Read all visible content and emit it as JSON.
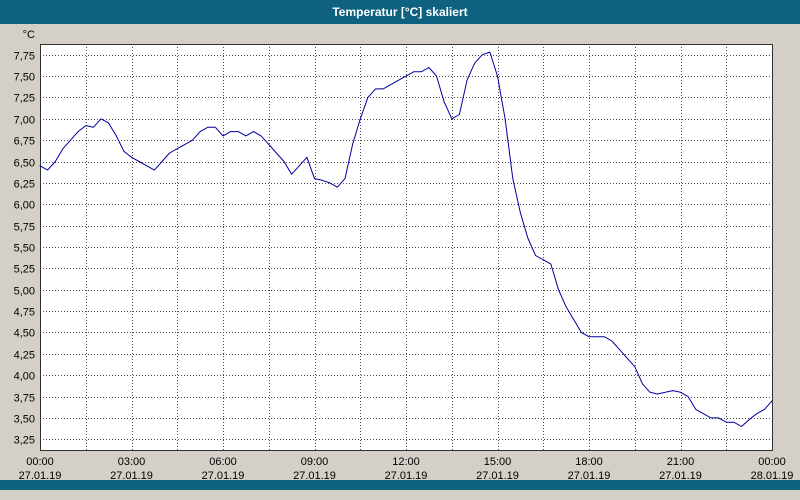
{
  "window": {
    "title": "Temperatur [°C] skaliert"
  },
  "colors": {
    "titlebar": "#0e6280",
    "background": "#d4d0c8",
    "plot_background": "#ffffff",
    "grid": "#4d4d4d",
    "plot_border": "#303030",
    "series_line": "#0000a0",
    "title_text": "#ffffff",
    "tick_text": "#000000"
  },
  "chart_data": {
    "type": "line",
    "title": "Temperatur [°C] skaliert",
    "ylabel": "°C",
    "xlabel": "",
    "grid": true,
    "legend": "none",
    "decimal_comma": true,
    "ylim": [
      3.125,
      7.875
    ],
    "y_ticks": [
      7.75,
      7.5,
      7.25,
      7.0,
      6.75,
      6.5,
      6.25,
      6.0,
      5.75,
      5.5,
      5.25,
      5.0,
      4.75,
      4.5,
      4.25,
      4.0,
      3.75,
      3.5,
      3.25
    ],
    "x_range_hours": [
      0,
      24
    ],
    "minor_x_step_hours": 1.5,
    "x_ticks": [
      {
        "hour": 0,
        "time": "00:00",
        "date": "27.01.19"
      },
      {
        "hour": 3,
        "time": "03:00",
        "date": "27.01.19"
      },
      {
        "hour": 6,
        "time": "06:00",
        "date": "27.01.19"
      },
      {
        "hour": 9,
        "time": "09:00",
        "date": "27.01.19"
      },
      {
        "hour": 12,
        "time": "12:00",
        "date": "27.01.19"
      },
      {
        "hour": 15,
        "time": "15:00",
        "date": "27.01.19"
      },
      {
        "hour": 18,
        "time": "18:00",
        "date": "27.01.19"
      },
      {
        "hour": 21,
        "time": "21:00",
        "date": "27.01.19"
      },
      {
        "hour": 24,
        "time": "00:00",
        "date": "28.01.19"
      }
    ],
    "series": [
      {
        "name": "Temperatur",
        "sample_interval_hours": 0.25,
        "start_hour": 0,
        "values": [
          6.45,
          6.4,
          6.5,
          6.65,
          6.75,
          6.85,
          6.92,
          6.9,
          7.0,
          6.95,
          6.8,
          6.62,
          6.55,
          6.5,
          6.45,
          6.4,
          6.5,
          6.6,
          6.65,
          6.7,
          6.75,
          6.85,
          6.9,
          6.9,
          6.8,
          6.85,
          6.85,
          6.8,
          6.85,
          6.8,
          6.7,
          6.6,
          6.5,
          6.35,
          6.45,
          6.55,
          6.3,
          6.28,
          6.25,
          6.2,
          6.3,
          6.7,
          7.0,
          7.25,
          7.35,
          7.35,
          7.4,
          7.45,
          7.5,
          7.55,
          7.55,
          7.6,
          7.5,
          7.2,
          7.0,
          7.05,
          7.45,
          7.65,
          7.75,
          7.78,
          7.5,
          7.0,
          6.3,
          5.9,
          5.6,
          5.4,
          5.35,
          5.3,
          5.0,
          4.8,
          4.65,
          4.5,
          4.45,
          4.45,
          4.45,
          4.4,
          4.3,
          4.2,
          4.1,
          3.9,
          3.8,
          3.78,
          3.8,
          3.82,
          3.8,
          3.75,
          3.6,
          3.55,
          3.5,
          3.5,
          3.45,
          3.45,
          3.4,
          3.48,
          3.55,
          3.6,
          3.7
        ]
      }
    ]
  }
}
